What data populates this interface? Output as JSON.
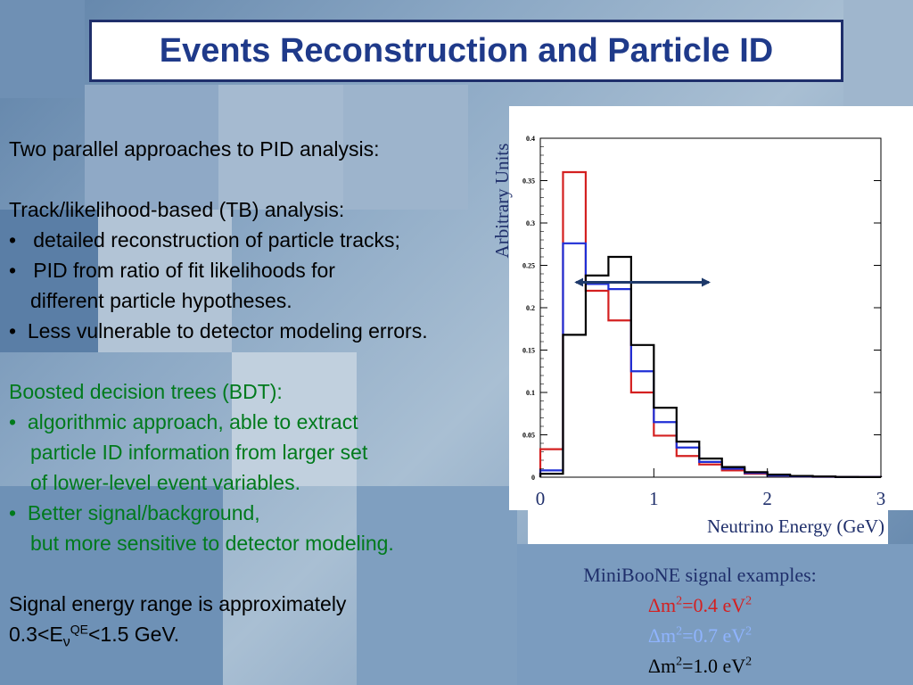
{
  "slide": {
    "title": "Events Reconstruction and Particle ID",
    "text": {
      "intro": "Two parallel approaches to PID analysis:",
      "tb_heading": "Track/likelihood-based (TB) analysis:",
      "tb_bullets": [
        "detailed reconstruction of particle tracks;",
        "PID from ratio of fit likelihoods for",
        "different particle hypotheses.",
        "Less vulnerable to detector modeling errors."
      ],
      "bdt_heading": "Boosted decision trees (BDT):",
      "bdt_bullets": [
        "algorithmic approach, able to extract",
        "particle ID information from larger set",
        "of lower-level event variables.",
        "Better signal/background,",
        "but more sensitive to detector modeling."
      ],
      "range_line1": "Signal energy range is approximately",
      "range_prefix": "0.3<E",
      "range_sub": "ν",
      "range_sup": "QE",
      "range_suffix": "<1.5 GeV.",
      "bullet": "•"
    },
    "caption": {
      "title": "MiniBooNE signal examples:",
      "items": [
        {
          "delta": "Δm",
          "exp": "2",
          "mid": "=0.4 eV",
          "unit_exp": "2",
          "color": "#d42020"
        },
        {
          "delta": "Δm",
          "exp": "2",
          "mid": "=0.7 eV",
          "unit_exp": "2",
          "color": "#8fb4ff"
        },
        {
          "delta": "Δm",
          "exp": "2",
          "mid": "=1.0 eV",
          "unit_exp": "2",
          "color": "#000000"
        }
      ]
    }
  },
  "chart_data": {
    "type": "histogram",
    "xlabel": "Neutrino Energy (GeV)",
    "ylabel": "Arbitrary Units",
    "xlim": [
      0,
      3
    ],
    "ylim": [
      0,
      0.4
    ],
    "x_ticks": [
      "0",
      "1",
      "2",
      "3"
    ],
    "y_ticks": [
      "0",
      "0.05",
      "0.1",
      "0.15",
      "0.2",
      "0.25",
      "0.3",
      "0.35",
      "0.4"
    ],
    "bin_edges": [
      0.0,
      0.2,
      0.4,
      0.6,
      0.8,
      1.0,
      1.2,
      1.4,
      1.6,
      1.8,
      2.0,
      2.2,
      2.4,
      2.6,
      2.8,
      3.0
    ],
    "series": [
      {
        "color": "#d42020",
        "values": [
          0.033,
          0.36,
          0.22,
          0.185,
          0.1,
          0.049,
          0.025,
          0.015,
          0.008,
          0.004,
          0.002,
          0.001,
          0.0005,
          0.0002,
          0.0001
        ]
      },
      {
        "color": "#1f2fd6",
        "values": [
          0.008,
          0.276,
          0.228,
          0.222,
          0.125,
          0.065,
          0.035,
          0.018,
          0.01,
          0.005,
          0.002,
          0.001,
          0.0005,
          0.0002,
          0.0001
        ]
      },
      {
        "color": "#000000",
        "values": [
          0.004,
          0.168,
          0.238,
          0.26,
          0.156,
          0.082,
          0.042,
          0.022,
          0.012,
          0.006,
          0.003,
          0.0015,
          0.0008,
          0.0003,
          0.0001
        ]
      }
    ],
    "annotation": {
      "type": "double-arrow",
      "x_start": 0.3,
      "x_end": 1.5,
      "y": 0.23,
      "color": "#1f3a6b"
    }
  }
}
